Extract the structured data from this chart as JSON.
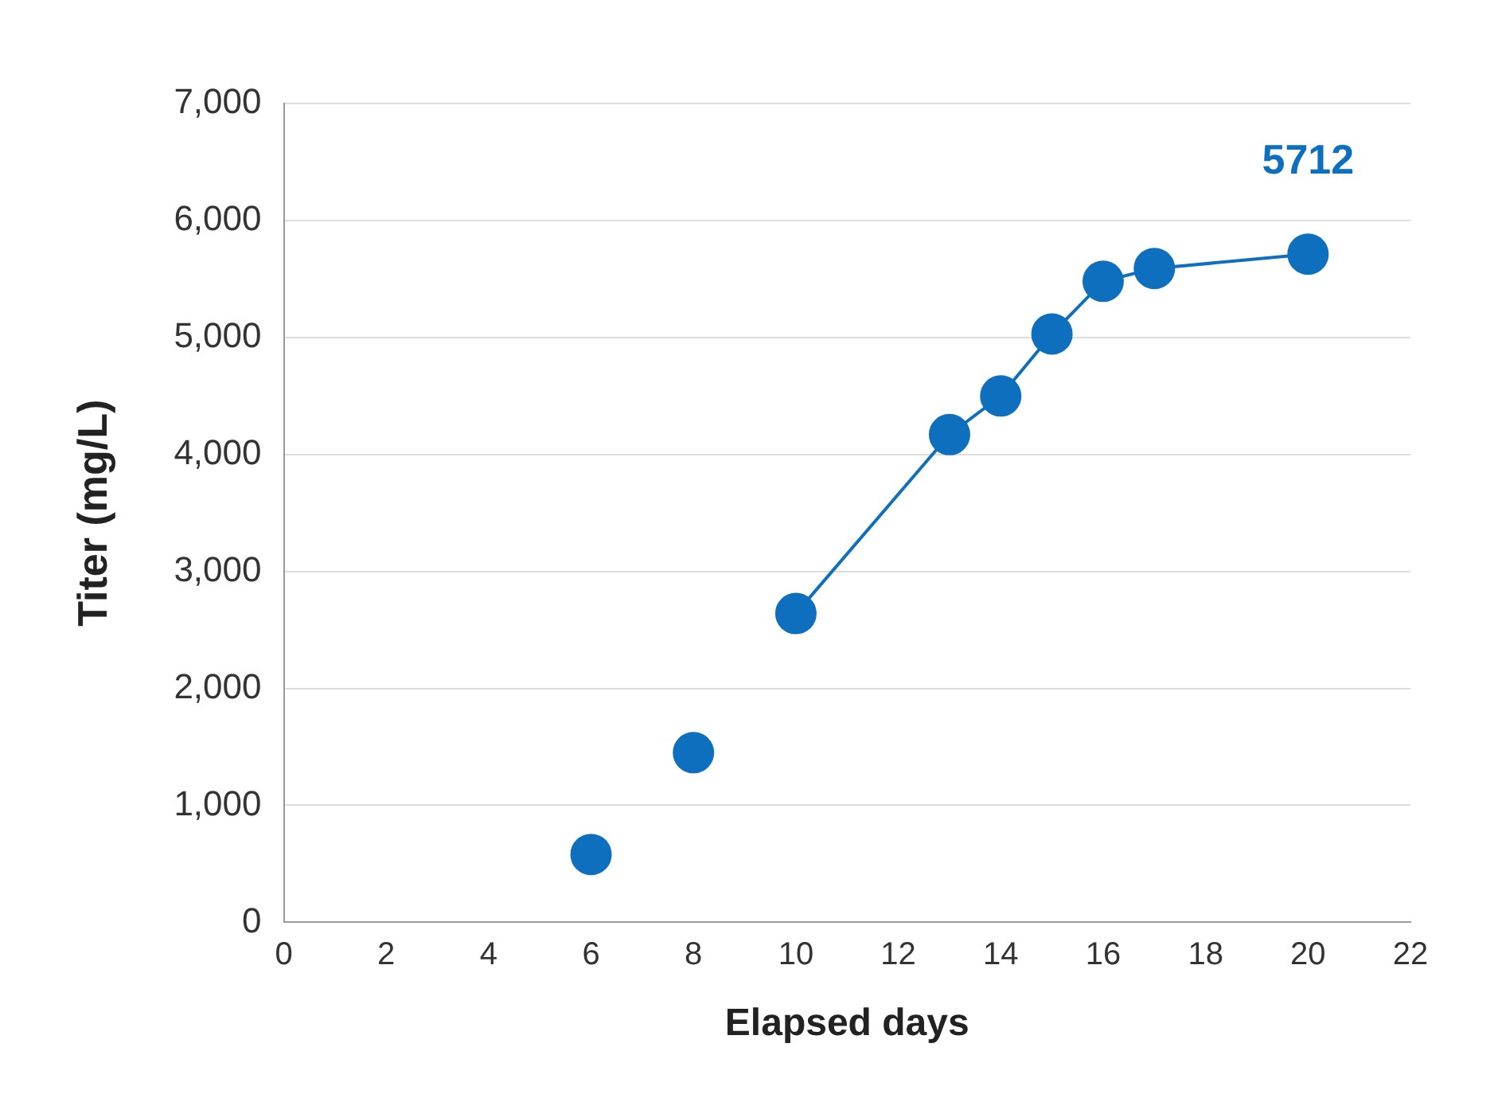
{
  "chart_data": {
    "type": "line",
    "xlabel": "Elapsed days",
    "ylabel": "Titer (mg/L)",
    "series": [
      {
        "type": "scatter",
        "color": "#0f6fbf",
        "x": [
          6,
          8
        ],
        "values": [
          580,
          1450
        ]
      },
      {
        "type": "line",
        "color": "#0f6fbf",
        "x": [
          10,
          13,
          14,
          15,
          16,
          17,
          20
        ],
        "values": [
          2640,
          4170,
          4500,
          5030,
          5480,
          5590,
          5712
        ],
        "value_labels": [
          null,
          null,
          null,
          null,
          null,
          null,
          "5712"
        ]
      }
    ],
    "xlim": [
      0,
      22
    ],
    "xticks": [
      0,
      2,
      4,
      6,
      8,
      10,
      12,
      14,
      16,
      18,
      20,
      22
    ],
    "ylim": [
      0,
      7000
    ],
    "yticks": [
      0,
      {
        "value": 1000,
        "label": "1,000"
      },
      {
        "value": 2000,
        "label": "2,000"
      },
      {
        "value": 3000,
        "label": "3,000"
      },
      {
        "value": 4000,
        "label": "4,000"
      },
      {
        "value": 5000,
        "label": "5,000"
      },
      {
        "value": 6000,
        "label": "6,000"
      },
      {
        "value": 7000,
        "label": "7,000"
      }
    ],
    "grid": "y",
    "marker": "circle",
    "legend": false
  }
}
